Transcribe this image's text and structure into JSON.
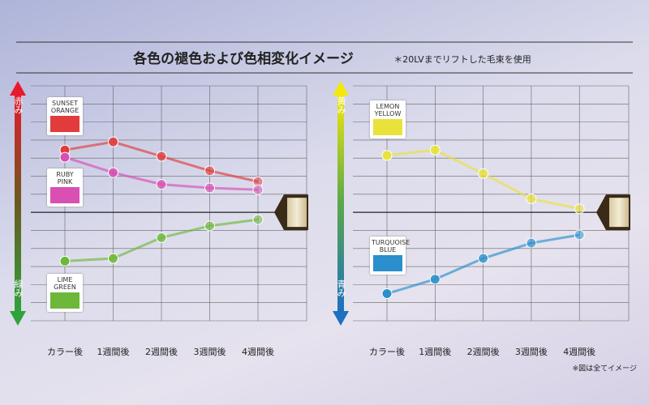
{
  "title": "各色の褪色および色相変化イメージ",
  "note": "＊20LVまでリフトした毛束を使用",
  "footnote": "※図は全てイメージ",
  "chart_data": [
    {
      "type": "line",
      "axis_top_label": "赤み",
      "axis_bottom_label": "緑み",
      "categories": [
        "カラー後",
        "1週間後",
        "2週間後",
        "3週間後",
        "4週間後"
      ],
      "series": [
        {
          "name": "SUNSET ORANGE",
          "color": "#e23b3b",
          "values": [
            3.45,
            3.9,
            3.1,
            2.3,
            1.7
          ]
        },
        {
          "name": "RUBY PINK",
          "color": "#d94fb4",
          "values": [
            3.05,
            2.2,
            1.55,
            1.35,
            1.25
          ]
        },
        {
          "name": "LIME GREEN",
          "color": "#6db83a",
          "values": [
            -2.7,
            -2.55,
            -1.4,
            -0.75,
            -0.4
          ]
        }
      ],
      "ylim": [
        -6,
        7
      ],
      "yticks": [
        -6,
        -5,
        -4,
        -3,
        -2,
        -1,
        0,
        1,
        2,
        3,
        4,
        5,
        6,
        7
      ],
      "grid": true
    },
    {
      "type": "line",
      "axis_top_label": "黄み",
      "axis_bottom_label": "青み",
      "categories": [
        "カラー後",
        "1週間後",
        "2週間後",
        "3週間後",
        "4週間後"
      ],
      "series": [
        {
          "name": "LEMON YELLOW",
          "color": "#e9e23a",
          "values": [
            3.15,
            3.45,
            2.15,
            0.75,
            0.2
          ]
        },
        {
          "name": "TURQUOISE BLUE",
          "color": "#2a8fcc",
          "values": [
            -4.5,
            -3.7,
            -2.55,
            -1.7,
            -1.25
          ]
        }
      ],
      "ylim": [
        -6,
        7
      ],
      "yticks": [
        -6,
        -5,
        -4,
        -3,
        -2,
        -1,
        0,
        1,
        2,
        3,
        4,
        5,
        6,
        7
      ],
      "grid": true
    }
  ]
}
